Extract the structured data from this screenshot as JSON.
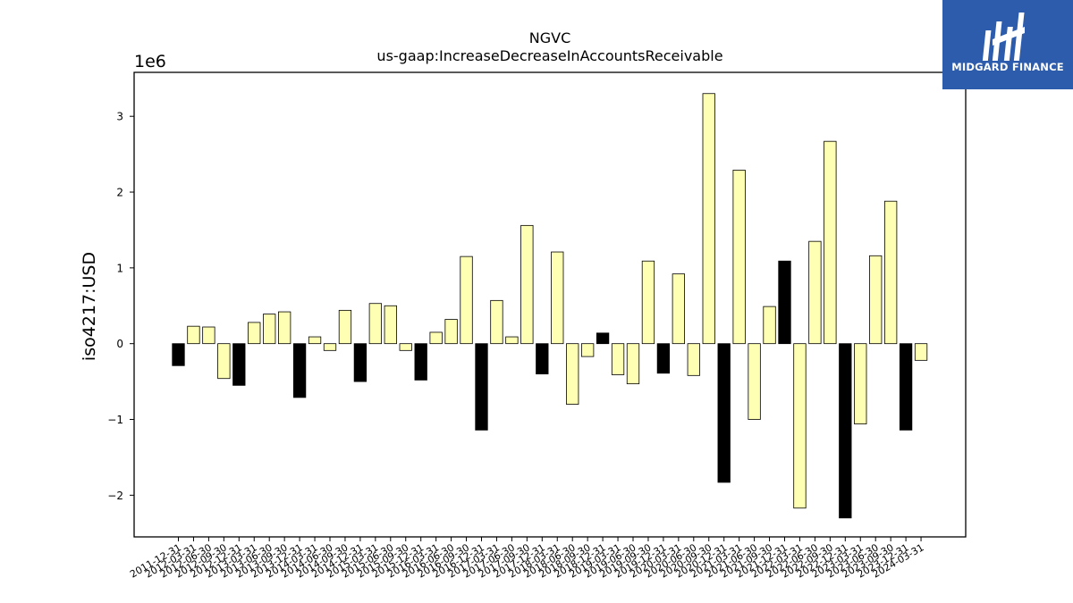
{
  "chart_data": {
    "type": "bar",
    "title": "NGVC",
    "subtitle": "us-gaap:IncreaseDecreaseInAccountsReceivable",
    "ylabel": "iso4217:USD",
    "xlabel": "",
    "y_offset_label": "1e6",
    "ylim": [
      -2550000,
      3580000
    ],
    "yticks": [
      -2000000,
      -1000000,
      0,
      1000000,
      2000000,
      3000000
    ],
    "ytick_labels": [
      "−2",
      "−1",
      "0",
      "1",
      "2",
      "3"
    ],
    "grid": false,
    "colors": {
      "positive": "#ffffb3",
      "negative": "#000000",
      "edge": "#000000"
    },
    "categories": [
      "2011-12-31",
      "2012-03-31",
      "2012-06-30",
      "2012-09-30",
      "2012-12-31",
      "2013-03-31",
      "2013-06-30",
      "2013-09-30",
      "2013-12-31",
      "2014-03-31",
      "2014-06-30",
      "2014-09-30",
      "2014-12-31",
      "2015-03-31",
      "2015-06-30",
      "2015-09-30",
      "2015-12-31",
      "2016-03-31",
      "2016-06-30",
      "2016-09-30",
      "2016-12-31",
      "2017-03-31",
      "2017-06-30",
      "2017-09-30",
      "2017-12-31",
      "2018-03-31",
      "2018-06-30",
      "2018-09-30",
      "2018-12-31",
      "2019-03-31",
      "2019-06-30",
      "2019-09-30",
      "2019-12-31",
      "2020-03-31",
      "2020-06-30",
      "2020-09-30",
      "2020-12-31",
      "2021-03-31",
      "2021-06-30",
      "2021-09-30",
      "2021-12-31",
      "2022-03-31",
      "2022-06-30",
      "2022-09-30",
      "2022-12-31",
      "2023-03-31",
      "2023-06-30",
      "2023-09-30",
      "2023-12-31",
      "2024-03-31"
    ],
    "values": [
      -290000,
      230000,
      220000,
      -460000,
      -550000,
      280000,
      390000,
      420000,
      -710000,
      90000,
      -90000,
      440000,
      -500000,
      530000,
      500000,
      -90000,
      -480000,
      150000,
      320000,
      1150000,
      -1140000,
      570000,
      90000,
      1560000,
      -400000,
      1210000,
      -800000,
      -170000,
      140000,
      -410000,
      -530000,
      1090000,
      -390000,
      920000,
      -420000,
      3300000,
      -1830000,
      2290000,
      -1000000,
      490000,
      1090000,
      -2170000,
      1350000,
      2670000,
      -2300000,
      -1060000,
      1160000,
      1880000,
      -1140000,
      -220000
    ],
    "fill_colors": [
      "#000000",
      "#ffffb3",
      "#ffffb3",
      "#ffffb3",
      "#000000",
      "#ffffb3",
      "#ffffb3",
      "#ffffb3",
      "#000000",
      "#ffffb3",
      "#ffffb3",
      "#ffffb3",
      "#000000",
      "#ffffb3",
      "#ffffb3",
      "#ffffb3",
      "#000000",
      "#ffffb3",
      "#ffffb3",
      "#ffffb3",
      "#000000",
      "#ffffb3",
      "#ffffb3",
      "#ffffb3",
      "#000000",
      "#ffffb3",
      "#ffffb3",
      "#ffffb3",
      "#000000",
      "#ffffb3",
      "#ffffb3",
      "#ffffb3",
      "#000000",
      "#ffffb3",
      "#ffffb3",
      "#ffffb3",
      "#000000",
      "#ffffb3",
      "#ffffb3",
      "#ffffb3",
      "#000000",
      "#ffffb3",
      "#ffffb3",
      "#ffffb3",
      "#000000",
      "#ffffb3",
      "#ffffb3",
      "#ffffb3",
      "#000000",
      "#ffffb3"
    ]
  },
  "logo": {
    "text": "MIDGARD FINANCE",
    "background": "#2d5cad",
    "icon": "midgard-monogram-icon"
  }
}
